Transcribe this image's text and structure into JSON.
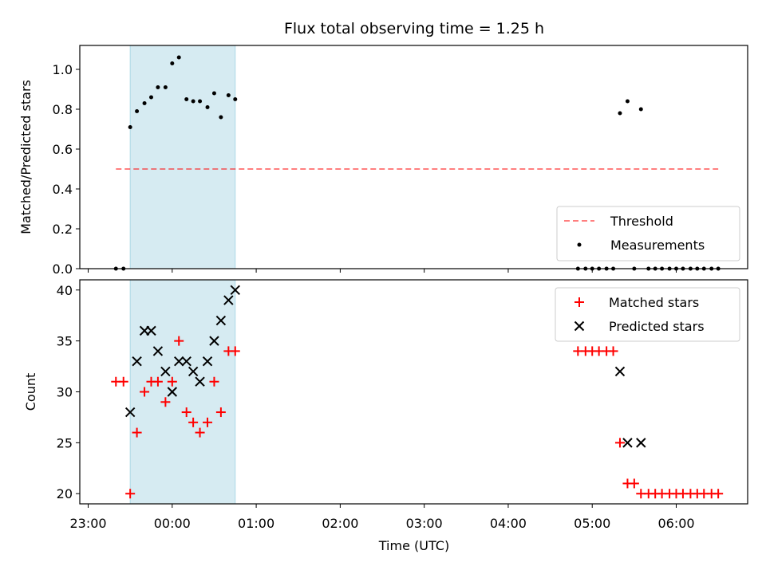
{
  "chart_data": {
    "title": "Flux total observing time = 1.25 h",
    "xlabel": "Time (UTC)",
    "xticks": [
      "23:00",
      "00:00",
      "01:00",
      "02:00",
      "03:00",
      "04:00",
      "05:00",
      "06:00"
    ],
    "xlim_hours": [
      -1.1,
      6.85
    ],
    "observing_window_hours": [
      -0.5,
      0.75
    ],
    "colors": {
      "window": "#add8e6",
      "threshold": "#ff0000",
      "measurements": "#000000",
      "matched": "#ff0000",
      "predicted": "#000000"
    },
    "panels": [
      {
        "type": "scatter",
        "ylabel": "Matched/Predicted stars",
        "ylim": [
          0,
          1.12
        ],
        "yticks": [
          "0.0",
          "0.2",
          "0.4",
          "0.6",
          "0.8",
          "1.0"
        ],
        "legend_position": "lower right",
        "threshold": {
          "name": "Threshold",
          "value": 0.5,
          "x_range": [
            -0.67,
            6.5
          ]
        },
        "series": [
          {
            "name": "Measurements",
            "x": [
              -0.67,
              -0.58,
              -0.5,
              -0.42,
              -0.33,
              -0.25,
              -0.17,
              -0.08,
              0.0,
              0.08,
              0.17,
              0.25,
              0.33,
              0.42,
              0.5,
              0.58,
              0.67,
              0.75,
              4.83,
              4.92,
              5.0,
              5.08,
              5.17,
              5.25,
              5.33,
              5.42,
              5.5,
              5.58,
              5.67,
              5.75,
              5.83,
              5.92,
              6.0,
              6.08,
              6.17,
              6.25,
              6.33,
              6.42,
              6.5
            ],
            "y": [
              0.0,
              0.0,
              0.71,
              0.79,
              0.83,
              0.86,
              0.91,
              0.91,
              1.03,
              1.06,
              0.85,
              0.84,
              0.84,
              0.81,
              0.88,
              0.76,
              0.87,
              0.85,
              0.0,
              0.0,
              0.0,
              0.0,
              0.0,
              0.0,
              0.78,
              0.84,
              0.0,
              0.8,
              0.0,
              0.0,
              0.0,
              0.0,
              0.0,
              0.0,
              0.0,
              0.0,
              0.0,
              0.0,
              0.0
            ]
          }
        ]
      },
      {
        "type": "scatter",
        "ylabel": "Count",
        "ylim": [
          19,
          41
        ],
        "yticks": [
          "20",
          "25",
          "30",
          "35",
          "40"
        ],
        "legend_position": "upper right",
        "series": [
          {
            "name": "Matched stars",
            "marker": "plus",
            "x": [
              -0.67,
              -0.58,
              -0.5,
              -0.42,
              -0.33,
              -0.25,
              -0.17,
              -0.08,
              0.0,
              0.08,
              0.17,
              0.25,
              0.33,
              0.42,
              0.5,
              0.58,
              0.67,
              0.75,
              4.83,
              4.92,
              5.0,
              5.08,
              5.17,
              5.25,
              5.33,
              5.42,
              5.5,
              5.58,
              5.67,
              5.75,
              5.83,
              5.92,
              6.0,
              6.08,
              6.17,
              6.25,
              6.33,
              6.42,
              6.5
            ],
            "y": [
              31,
              31,
              20,
              26,
              30,
              31,
              31,
              29,
              31,
              35,
              28,
              27,
              26,
              27,
              31,
              28,
              34,
              34,
              34,
              34,
              34,
              34,
              34,
              34,
              25,
              21,
              21,
              20,
              20,
              20,
              20,
              20,
              20,
              20,
              20,
              20,
              20,
              20,
              20
            ]
          },
          {
            "name": "Predicted stars",
            "marker": "x",
            "x": [
              -0.5,
              -0.42,
              -0.33,
              -0.25,
              -0.17,
              -0.08,
              0.0,
              0.08,
              0.17,
              0.25,
              0.33,
              0.42,
              0.5,
              0.58,
              0.67,
              0.75,
              5.33,
              5.42,
              5.58
            ],
            "y": [
              28,
              33,
              36,
              36,
              34,
              32,
              30,
              33,
              33,
              32,
              31,
              33,
              35,
              37,
              39,
              40,
              32,
              25,
              25
            ]
          }
        ]
      }
    ]
  }
}
